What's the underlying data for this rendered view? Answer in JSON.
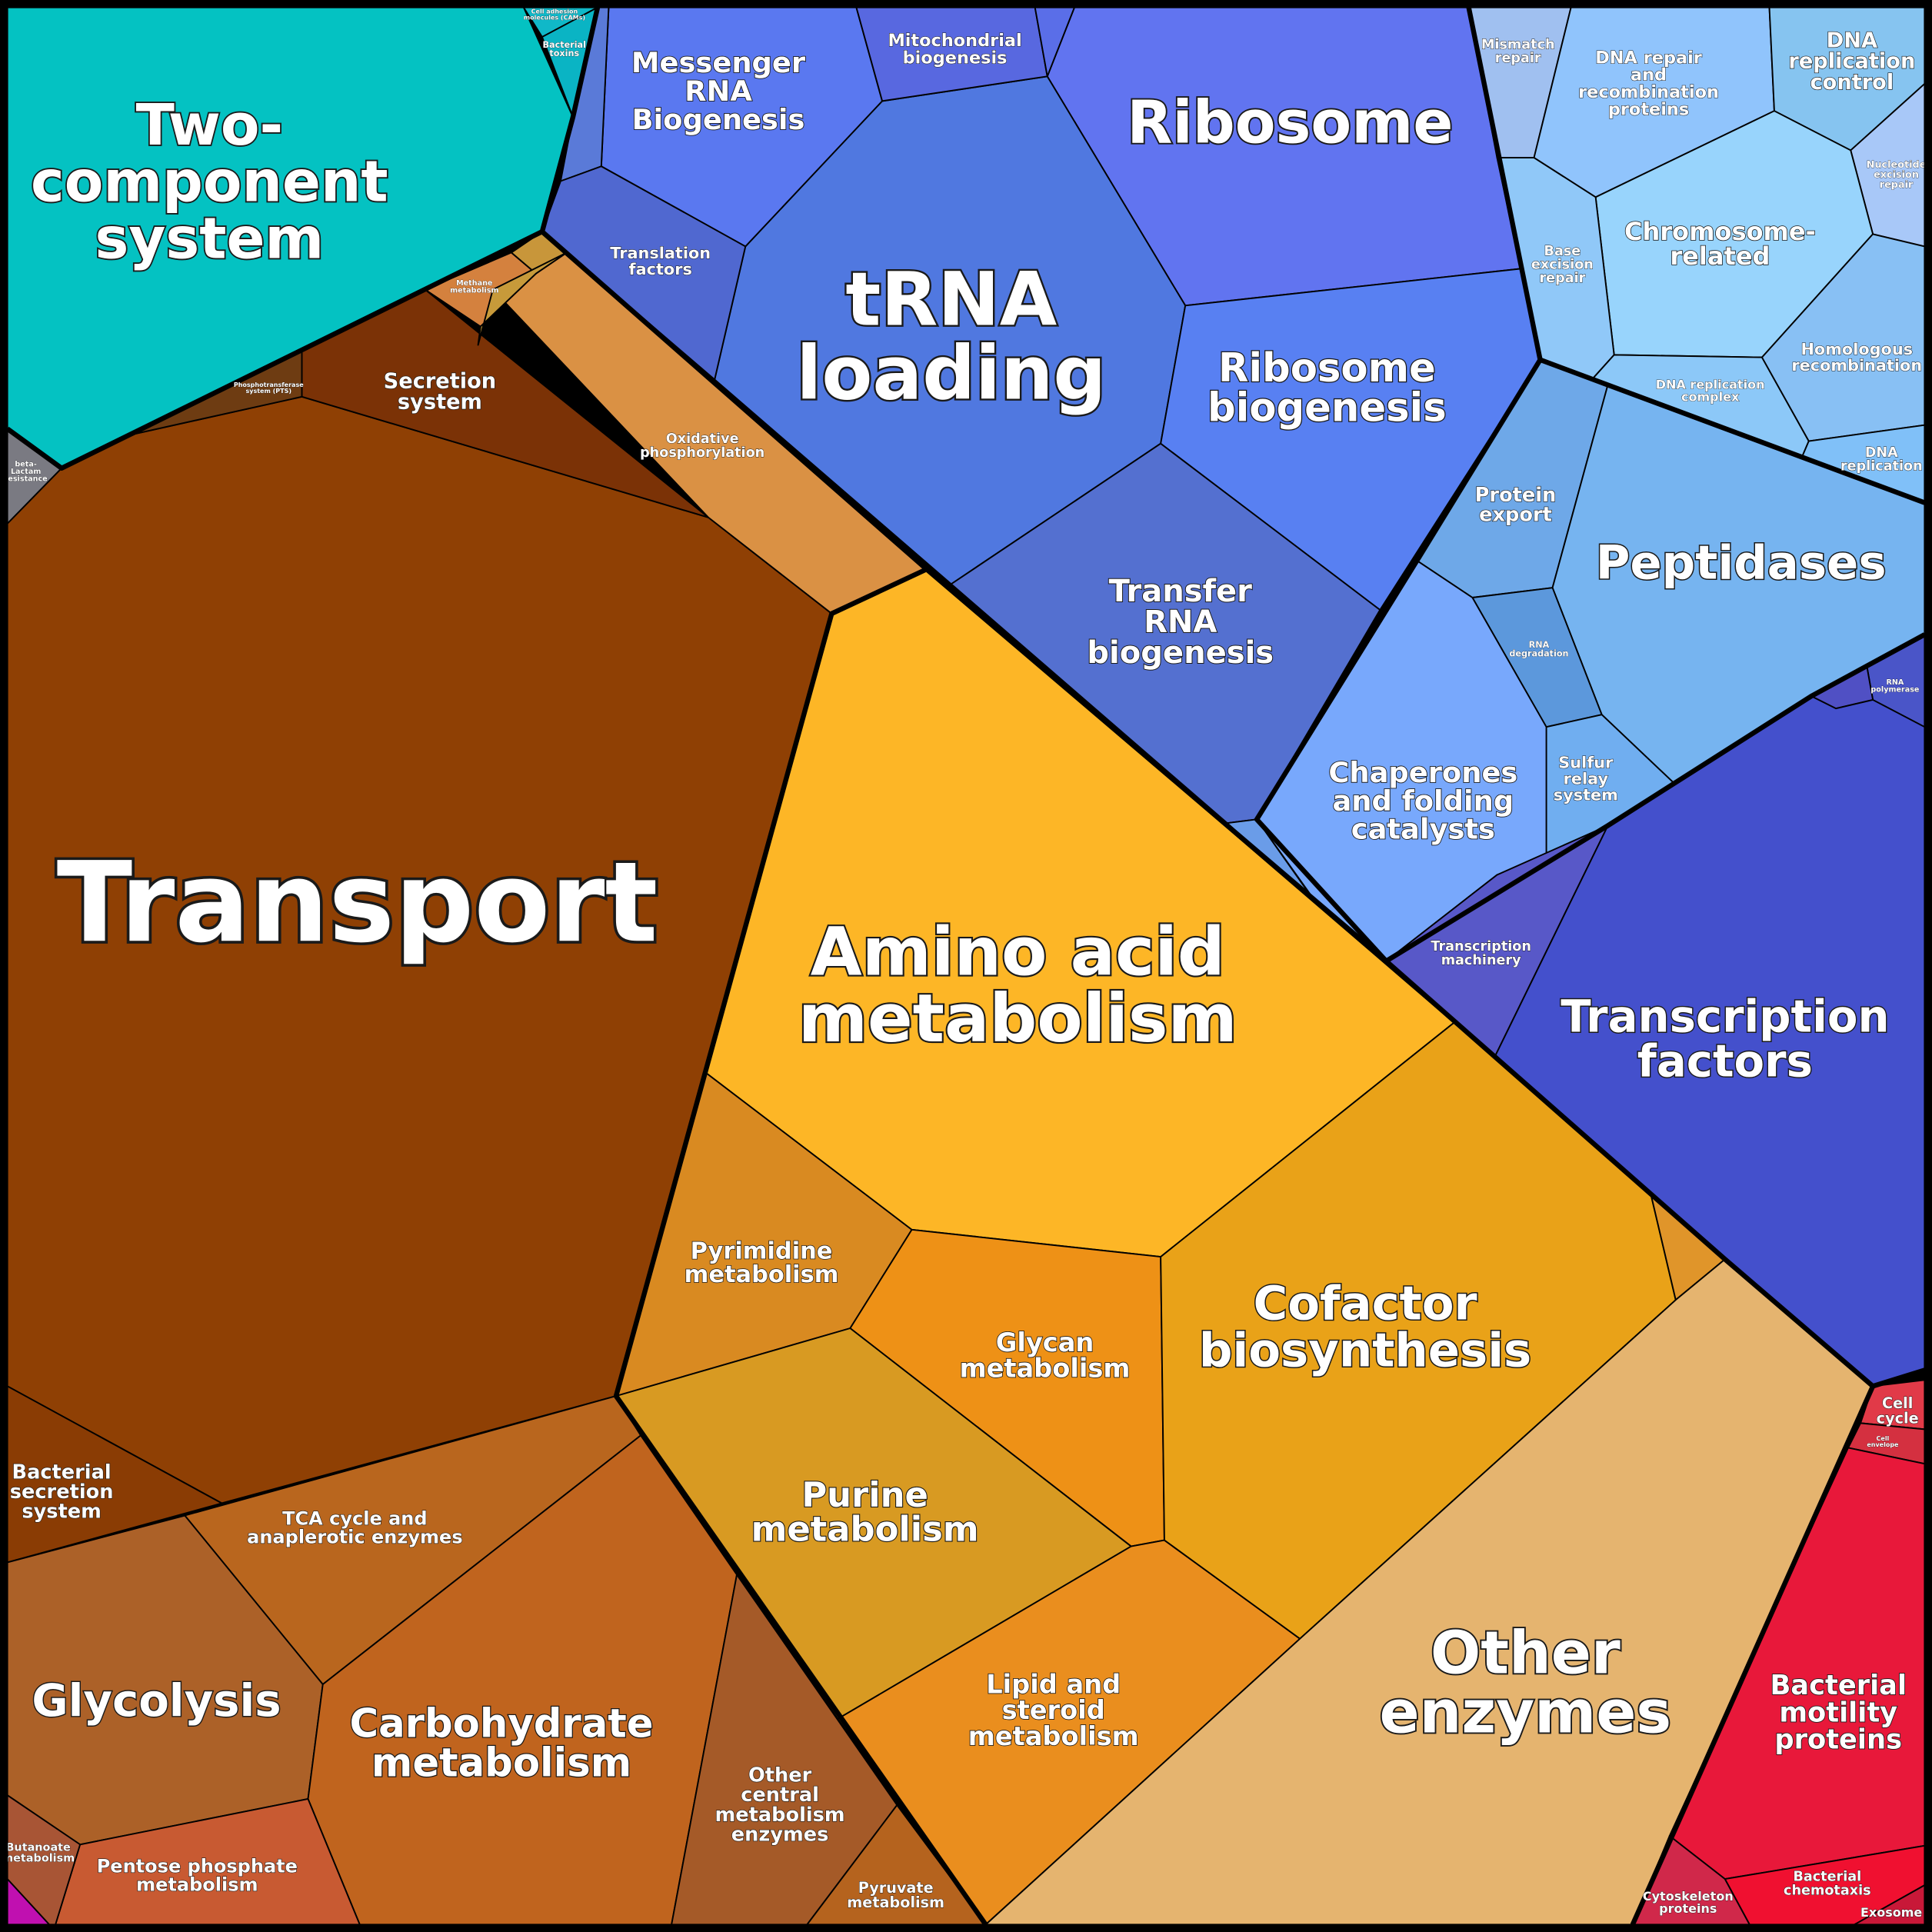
{
  "cells": [
    {
      "lines": [
        "Two-",
        "component",
        "system"
      ]
    },
    {
      "lines": [
        "Cell adhesion",
        "molecules (CAMs)"
      ]
    },
    {
      "lines": [
        "Bacterial",
        "toxins"
      ]
    },
    {
      "lines": [
        "beta-",
        "Lactam",
        "resistance"
      ]
    },
    {
      "lines": [
        "Transport"
      ]
    },
    {
      "lines": [
        "Secretion",
        "system"
      ]
    },
    {
      "lines": [
        "Phosphotransferase",
        "system (PTS)"
      ]
    },
    {
      "lines": [
        "Bacterial",
        "secretion",
        "system"
      ]
    },
    {
      "lines": [
        "Oxidative",
        "phosphorylation"
      ]
    },
    {
      "lines": [
        "Methane",
        "metabolism"
      ]
    },
    {
      "lines": [
        "TCA cycle and",
        "anaplerotic enzymes"
      ]
    },
    {
      "lines": [
        "Glycolysis"
      ]
    },
    {
      "lines": [
        "Carbohydrate",
        "metabolism"
      ]
    },
    {
      "lines": [
        "Other",
        "central",
        "metabolism",
        "enzymes"
      ]
    },
    {
      "lines": [
        "Pyruvate",
        "metabolism"
      ]
    },
    {
      "lines": [
        "Pentose phosphate",
        "metabolism"
      ]
    },
    {
      "lines": [
        "Butanoate",
        "metabolism"
      ]
    },
    {
      "lines": [
        "Amino acid",
        "metabolism"
      ]
    },
    {
      "lines": [
        "Pyrimidine",
        "metabolism"
      ]
    },
    {
      "lines": [
        "Glycan",
        "metabolism"
      ]
    },
    {
      "lines": [
        "Purine",
        "metabolism"
      ]
    },
    {
      "lines": [
        "Lipid and",
        "steroid",
        "metabolism"
      ]
    },
    {
      "lines": [
        "Cofactor",
        "biosynthesis"
      ]
    },
    {
      "lines": [
        "Other",
        "enzymes"
      ]
    },
    {
      "lines": [
        "Cell",
        "cycle"
      ]
    },
    {
      "lines": [
        "Cell",
        "envelope"
      ]
    },
    {
      "lines": [
        "Bacterial",
        "motility",
        "proteins"
      ]
    },
    {
      "lines": [
        "Cytoskeleton",
        "proteins"
      ]
    },
    {
      "lines": [
        "Bacterial",
        "chemotaxis"
      ]
    },
    {
      "lines": [
        "Exosome"
      ]
    },
    {
      "lines": [
        "Ribosome"
      ]
    },
    {
      "lines": [
        "tRNA",
        "loading"
      ]
    },
    {
      "lines": [
        "Ribosome",
        "biogenesis"
      ]
    },
    {
      "lines": [
        "Transfer",
        "RNA",
        "biogenesis"
      ]
    },
    {
      "lines": [
        "Messenger",
        "RNA",
        "Biogenesis"
      ]
    },
    {
      "lines": [
        "Mitochondrial",
        "biogenesis"
      ]
    },
    {
      "lines": [
        "Translation",
        "factors"
      ]
    },
    {
      "lines": [
        "Mismatch",
        "repair"
      ]
    },
    {
      "lines": [
        "DNA repair",
        "and",
        "recombination",
        "proteins"
      ]
    },
    {
      "lines": [
        "DNA",
        "replication",
        "control"
      ]
    },
    {
      "lines": [
        "Nucleotide",
        "excision",
        "repair"
      ]
    },
    {
      "lines": [
        "Chromosome-",
        "related"
      ]
    },
    {
      "lines": [
        "Base",
        "excision",
        "repair"
      ]
    },
    {
      "lines": [
        "DNA replication",
        "complex"
      ]
    },
    {
      "lines": [
        "Homologous",
        "recombination"
      ]
    },
    {
      "lines": [
        "DNA",
        "replication"
      ]
    },
    {
      "lines": [
        "Protein",
        "export"
      ]
    },
    {
      "lines": [
        "Peptidases"
      ]
    },
    {
      "lines": [
        "RNA",
        "degradation"
      ]
    },
    {
      "lines": [
        "Sulfur",
        "relay",
        "system"
      ]
    },
    {
      "lines": [
        "Chaperones",
        "and folding",
        "catalysts"
      ]
    },
    {
      "lines": [
        "RNA",
        "polymerase"
      ]
    },
    {
      "lines": [
        "Transcription",
        "machinery"
      ]
    },
    {
      "lines": [
        "Transcription",
        "factors"
      ]
    }
  ]
}
